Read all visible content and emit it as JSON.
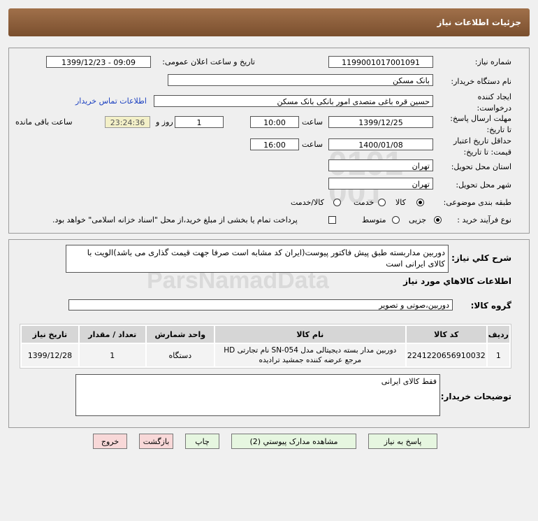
{
  "header": {
    "title": "جزئیات اطلاعات نیاز"
  },
  "form": {
    "need_number_label": "شماره نیاز:",
    "need_number": "1199001017001091",
    "announce_label": "تاریخ و ساعت اعلان عمومی:",
    "announce_value": "1399/12/23 - 09:09",
    "buyer_label": "نام دستگاه خریدار:",
    "buyer": "بانک مسکن",
    "creator_label_1": "ایجاد کننده",
    "creator_label_2": "درخواست:",
    "creator": "حسین  قره باغی متصدی امور بانکی بانک مسکن",
    "contact_link": "اطلاعات تماس خریدار",
    "deadline_label_1": "مهلت ارسال پاسخ:",
    "deadline_label_2": "تا تاریخ:",
    "deadline_date": "1399/12/25",
    "time_label": "ساعت",
    "deadline_time": "10:00",
    "days": "1",
    "days_label": "روز و",
    "remaining": "23:24:36",
    "remaining_label": "ساعت باقی مانده",
    "validity_label_1": "حداقل تاریخ اعتبار",
    "validity_label_2": "قیمت: تا تاریخ:",
    "validity_date": "1400/01/08",
    "validity_time": "16:00",
    "province_label": "استان محل تحویل:",
    "province": "تهران",
    "city_label": "شهر محل تحویل:",
    "city": "تهران",
    "category_label": "طبقه بندی موضوعی:",
    "category_options": [
      "کالا",
      "خدمت",
      "کالا/خدمت"
    ],
    "category_selected": "کالا",
    "process_label": "نوع فرآیند خرید :",
    "process_options": [
      "جزیی",
      "متوسط"
    ],
    "process_selected": "جزیی",
    "payment_note": "پرداخت تمام یا بخشی از مبلغ خرید،از محل \"اسناد خزانه اسلامی\" خواهد بود."
  },
  "details": {
    "description_label": "شرح کلي نياز:",
    "description": "دوربین مداربسته طبق پیش فاکتور پیوست(ایران کد مشابه است صرفا جهت قیمت گذاری می باشد)الویت با کالای ایرانی است",
    "goods_title": "اطلاعات کالاهاي مورد نياز",
    "group_label": "گروه کالا:",
    "group": "دوربین،صوتی و تصویر",
    "table": {
      "headers": [
        "ردیف",
        "کد کالا",
        "نام کالا",
        "واحد شمارش",
        "تعداد / مقدار",
        "تاریخ نیاز"
      ],
      "rows": [
        [
          "1",
          "2241220656910032",
          "دوربین مدار بسته دیجیتالی مدل SN-054 نام تجارتی HD مرجع عرضه کننده جمشید ترادیده",
          "دستگاه",
          "1",
          "1399/12/28"
        ]
      ]
    },
    "comments_label": "توضیحات خریدار:",
    "comments": "فقط کالای ایرانی"
  },
  "buttons": {
    "reply": "پاسخ به نیاز",
    "docs": "مشاهده مدارک پیوستي (2)",
    "print": "چاپ",
    "back": "بازگشت",
    "exit": "خروج"
  },
  "watermark": "ParsNamadData"
}
